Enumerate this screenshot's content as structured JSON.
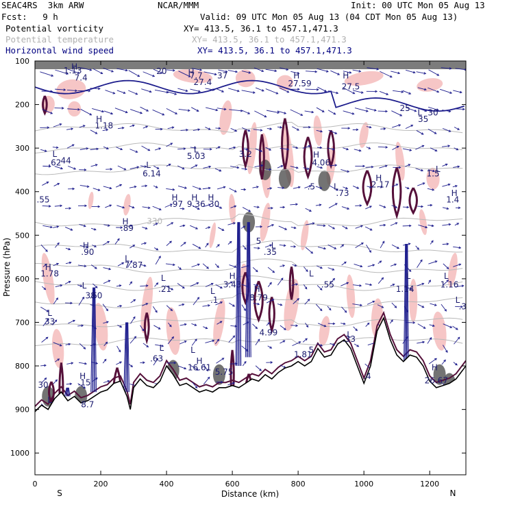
{
  "header": {
    "model": "SEAC4RS  3km ARW",
    "source": "NCAR/MMM",
    "init": "Init: 00 UTC Mon 05 Aug 13",
    "fcst": "Fcst:   9 h",
    "valid": "Valid: 09 UTC Mon 05 Aug 13 (04 CDT Mon 05 Aug 13)",
    "fields": [
      {
        "name": "Potential vorticity",
        "xy": "XY= 413.5, 36.1 to 457.1,471.3",
        "color": "#000000"
      },
      {
        "name": "Potential temperature",
        "xy": "XY= 413.5, 36.1 to 457.1,471.3",
        "color": "#b0b0b0"
      },
      {
        "name": "Horizontal wind speed",
        "xy": "XY= 413.5, 36.1 to 457.1,471.3",
        "color": "#000080"
      }
    ]
  },
  "colors": {
    "pv_fill": "#f6c6c6",
    "pv_contour": "#55103a",
    "theta": "#b9b9b9",
    "wind": "#1c1c8c",
    "terrain": "#000000",
    "dark_fill": "#505050"
  },
  "chart_data": {
    "type": "cross-section",
    "xlabel": "Distance (km)",
    "ylabel": "Pressure (hPa)",
    "xlim": [
      0,
      1310
    ],
    "ylim": [
      100,
      1050
    ],
    "x_ticks": [
      "0",
      "200",
      "400",
      "600",
      "800",
      "1000",
      "1200"
    ],
    "y_ticks": [
      "100",
      "200",
      "300",
      "400",
      "500",
      "600",
      "700",
      "800",
      "900",
      "1000"
    ],
    "y_tick_values": [
      100,
      200,
      300,
      400,
      500,
      600,
      700,
      800,
      900,
      1000
    ],
    "left_end_label": "S",
    "right_end_label": "N",
    "terrain": {
      "x": [
        0,
        20,
        40,
        60,
        80,
        100,
        120,
        140,
        160,
        180,
        200,
        220,
        240,
        260,
        280,
        290,
        300,
        320,
        340,
        360,
        380,
        400,
        420,
        440,
        460,
        480,
        500,
        520,
        540,
        560,
        580,
        600,
        620,
        640,
        660,
        680,
        700,
        720,
        740,
        760,
        780,
        800,
        820,
        840,
        860,
        880,
        900,
        920,
        940,
        960,
        980,
        1000,
        1020,
        1040,
        1060,
        1080,
        1100,
        1120,
        1140,
        1160,
        1180,
        1200,
        1220,
        1240,
        1260,
        1280,
        1310
      ],
      "p": [
        905,
        890,
        900,
        875,
        860,
        880,
        870,
        885,
        880,
        870,
        860,
        855,
        840,
        835,
        870,
        900,
        850,
        830,
        845,
        850,
        835,
        800,
        820,
        845,
        840,
        850,
        860,
        855,
        860,
        850,
        850,
        845,
        850,
        840,
        830,
        835,
        820,
        830,
        815,
        805,
        800,
        790,
        800,
        790,
        760,
        780,
        775,
        750,
        740,
        760,
        800,
        840,
        800,
        720,
        690,
        740,
        775,
        790,
        775,
        780,
        800,
        835,
        850,
        845,
        840,
        830,
        800
      ]
    },
    "pv_labels": [
      {
        "t": "H",
        "x": 120,
        "p": 120
      },
      {
        "t": "1.13",
        "x": 115,
        "p": 128
      },
      {
        "t": "7.4",
        "x": 140,
        "p": 145
      },
      {
        "t": "20",
        "x": 385,
        "p": 130
      },
      {
        "t": "H",
        "x": 475,
        "p": 133
      },
      {
        "t": "7.7",
        "x": 490,
        "p": 140
      },
      {
        "t": "27.4",
        "x": 510,
        "p": 155
      },
      {
        "t": "37",
        "x": 570,
        "p": 140
      },
      {
        "t": "H",
        "x": 795,
        "p": 140
      },
      {
        "t": "27.59",
        "x": 805,
        "p": 158
      },
      {
        "t": "H",
        "x": 945,
        "p": 140
      },
      {
        "t": "27.5",
        "x": 960,
        "p": 165
      },
      {
        "t": "25",
        "x": 1125,
        "p": 215
      },
      {
        "t": "L",
        "x": 1170,
        "p": 225
      },
      {
        "t": "30",
        "x": 1210,
        "p": 225
      },
      {
        "t": "35",
        "x": 1180,
        "p": 240
      },
      {
        "t": "H",
        "x": 195,
        "p": 240
      },
      {
        "t": "1.18",
        "x": 210,
        "p": 255
      },
      {
        "t": "L",
        "x": 60,
        "p": 320
      },
      {
        "t": ".62",
        "x": 60,
        "p": 340
      },
      {
        "t": ".44",
        "x": 90,
        "p": 335
      },
      {
        "t": "L",
        "x": 490,
        "p": 310
      },
      {
        "t": "5.03",
        "x": 490,
        "p": 325
      },
      {
        "t": "3.2",
        "x": 640,
        "p": 320
      },
      {
        "t": "L",
        "x": 345,
        "p": 345
      },
      {
        "t": "6.14",
        "x": 355,
        "p": 365
      },
      {
        "t": "H",
        "x": 855,
        "p": 322
      },
      {
        "t": "4.06",
        "x": 870,
        "p": 340
      },
      {
        "t": "L",
        "x": 1225,
        "p": 355
      },
      {
        "t": "1.5",
        "x": 1210,
        "p": 365
      },
      {
        "t": "H",
        "x": 1045,
        "p": 375
      },
      {
        "t": "2.17",
        "x": 1050,
        "p": 390
      },
      {
        "t": "L",
        "x": 915,
        "p": 395
      },
      {
        "t": ".5",
        "x": 840,
        "p": 395
      },
      {
        "t": ".73",
        "x": 935,
        "p": 410
      },
      {
        "t": "H",
        "x": 1275,
        "p": 410
      },
      {
        "t": "1.4",
        "x": 1270,
        "p": 425
      },
      {
        "t": ".55",
        "x": 25,
        "p": 425
      },
      {
        "t": "H",
        "x": 425,
        "p": 420
      },
      {
        "t": "H",
        "x": 485,
        "p": 420
      },
      {
        "t": "H",
        "x": 535,
        "p": 420
      },
      {
        "t": ".97",
        "x": 430,
        "p": 435
      },
      {
        "t": "9.36",
        "x": 490,
        "p": 435
      },
      {
        "t": "30",
        "x": 545,
        "p": 435
      },
      {
        "t": "H",
        "x": 275,
        "p": 475
      },
      {
        "t": ".89",
        "x": 280,
        "p": 490
      },
      {
        "t": "5",
        "x": 680,
        "p": 520
      },
      {
        "t": "H",
        "x": 155,
        "p": 530
      },
      {
        "t": "L",
        "x": 725,
        "p": 530
      },
      {
        "t": ".90",
        "x": 160,
        "p": 545
      },
      {
        "t": ".35",
        "x": 715,
        "p": 545
      },
      {
        "t": "L",
        "x": 280,
        "p": 560
      },
      {
        "t": "7.87",
        "x": 300,
        "p": 575
      },
      {
        "t": "H",
        "x": 40,
        "p": 580
      },
      {
        "t": "1.78",
        "x": 45,
        "p": 595
      },
      {
        "t": "L",
        "x": 840,
        "p": 595
      },
      {
        "t": "L",
        "x": 1135,
        "p": 600
      },
      {
        "t": "L",
        "x": 1250,
        "p": 600
      },
      {
        "t": "H",
        "x": 600,
        "p": 600
      },
      {
        "t": "3.43",
        "x": 600,
        "p": 620
      },
      {
        "t": "L",
        "x": 390,
        "p": 605
      },
      {
        "t": "L",
        "x": 150,
        "p": 622
      },
      {
        "t": ".55",
        "x": 890,
        "p": 620
      },
      {
        "t": "1.14",
        "x": 1125,
        "p": 630
      },
      {
        "t": "1.16",
        "x": 1260,
        "p": 620
      },
      {
        "t": ".21",
        "x": 395,
        "p": 630
      },
      {
        "t": ".38",
        "x": 165,
        "p": 645
      },
      {
        "t": ".60",
        "x": 185,
        "p": 645
      },
      {
        "t": "H",
        "x": 675,
        "p": 630
      },
      {
        "t": "L",
        "x": 540,
        "p": 635
      },
      {
        "t": "8.79",
        "x": 680,
        "p": 650
      },
      {
        "t": ".1",
        "x": 545,
        "p": 655
      },
      {
        "t": "L",
        "x": 1285,
        "p": 655
      },
      {
        "t": ".3",
        "x": 1300,
        "p": 670
      },
      {
        "t": "L",
        "x": 45,
        "p": 685
      },
      {
        "t": "33",
        "x": 45,
        "p": 705
      },
      {
        "t": "4.99",
        "x": 710,
        "p": 730
      },
      {
        "t": "L",
        "x": 955,
        "p": 735
      },
      {
        "t": ".33",
        "x": 955,
        "p": 745
      },
      {
        "t": "L",
        "x": 385,
        "p": 765
      },
      {
        "t": "L",
        "x": 480,
        "p": 770
      },
      {
        "t": "5",
        "x": 840,
        "p": 770
      },
      {
        "t": "1.81",
        "x": 815,
        "p": 780
      },
      {
        "t": ".63",
        "x": 370,
        "p": 790
      },
      {
        "t": "H",
        "x": 500,
        "p": 795
      },
      {
        "t": "16.61",
        "x": 500,
        "p": 810
      },
      {
        "t": "5.75",
        "x": 575,
        "p": 820
      },
      {
        "t": "H",
        "x": 145,
        "p": 830
      },
      {
        "t": ".15",
        "x": 150,
        "p": 845
      },
      {
        "t": "30",
        "x": 25,
        "p": 850
      },
      {
        "t": ".4",
        "x": 1010,
        "p": 830
      },
      {
        "t": "H",
        "x": 1215,
        "p": 810
      },
      {
        "t": "26.67",
        "x": 1220,
        "p": 840
      },
      {
        "t": "8.7",
        "x": 160,
        "p": 895
      },
      {
        "t": "L",
        "x": 45,
        "p": 885
      }
    ],
    "theta_levels": [
      {
        "label": "330",
        "p0": 470
      },
      {
        "label": "",
        "p0": 350
      },
      {
        "label": "",
        "p0": 300
      },
      {
        "label": "",
        "p0": 255
      },
      {
        "label": "",
        "p0": 530
      },
      {
        "label": "",
        "p0": 575
      },
      {
        "label": "",
        "p0": 615
      },
      {
        "label": "",
        "p0": 655
      },
      {
        "label": "",
        "p0": 700
      },
      {
        "label": "",
        "p0": 745
      }
    ]
  }
}
